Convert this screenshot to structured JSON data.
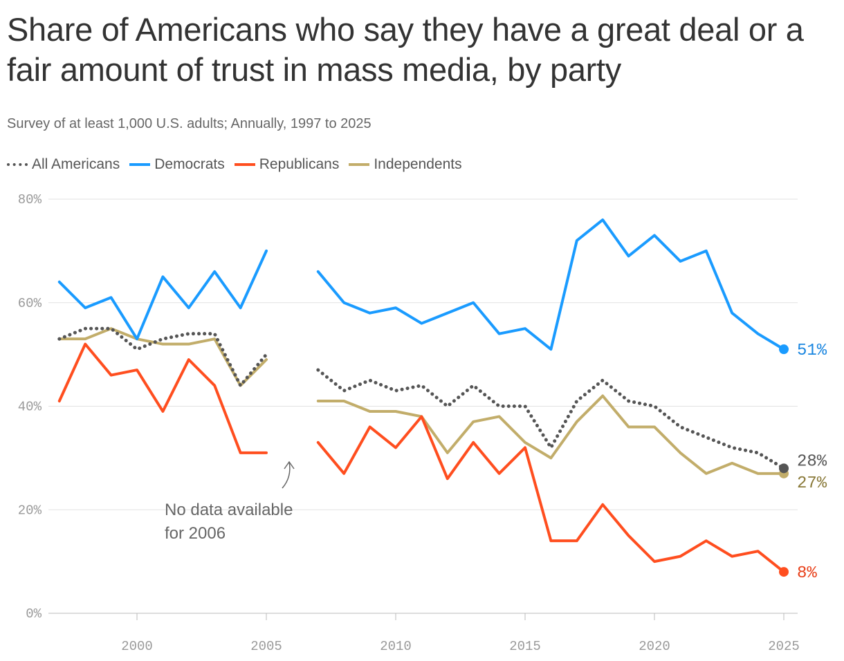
{
  "chart_data": {
    "type": "line",
    "title": "Share of Americans who say they have a great deal or a fair amount of trust in mass media, by party",
    "subtitle": "Survey of at least 1,000 U.S. adults; Annually, 1997 to 2025",
    "x": [
      1997,
      1998,
      1999,
      2000,
      2001,
      2002,
      2003,
      2004,
      2005,
      2006,
      2007,
      2008,
      2009,
      2010,
      2011,
      2012,
      2013,
      2014,
      2015,
      2016,
      2017,
      2018,
      2019,
      2020,
      2021,
      2022,
      2023,
      2024,
      2025
    ],
    "xlim": [
      1996,
      2025.5
    ],
    "xticks": [
      "2000",
      "2005",
      "2010",
      "2015",
      "2020",
      "2025"
    ],
    "ylim": [
      0,
      80
    ],
    "yticks": [
      "0%",
      "20%",
      "40%",
      "60%",
      "80%"
    ],
    "grid": true,
    "legend_position": "top-left",
    "series": [
      {
        "name": "All Americans",
        "color": "#555555",
        "style": "dotted",
        "values": [
          53,
          55,
          55,
          51,
          53,
          54,
          54,
          44,
          50,
          null,
          47,
          43,
          45,
          43,
          44,
          40,
          44,
          40,
          40,
          32,
          41,
          45,
          41,
          40,
          36,
          34,
          32,
          31,
          28
        ],
        "end_label": "28%",
        "label_color": "#555555"
      },
      {
        "name": "Democrats",
        "color": "#1a9bff",
        "style": "solid",
        "values": [
          64,
          59,
          61,
          53,
          65,
          59,
          66,
          59,
          70,
          null,
          66,
          60,
          58,
          59,
          56,
          58,
          60,
          54,
          55,
          51,
          72,
          76,
          69,
          73,
          68,
          70,
          58,
          54,
          51
        ],
        "end_label": "51%",
        "label_color": "#1a86e0"
      },
      {
        "name": "Republicans",
        "color": "#ff4e1f",
        "style": "solid",
        "values": [
          41,
          52,
          46,
          47,
          39,
          49,
          44,
          31,
          31,
          null,
          33,
          27,
          36,
          32,
          38,
          26,
          33,
          27,
          32,
          14,
          14,
          21,
          15,
          10,
          11,
          14,
          11,
          12,
          8
        ],
        "end_label": "8%",
        "label_color": "#e8401a"
      },
      {
        "name": "Independents",
        "color": "#c2ad6a",
        "style": "solid",
        "values": [
          53,
          53,
          55,
          53,
          52,
          52,
          53,
          44,
          49,
          null,
          41,
          41,
          39,
          39,
          38,
          31,
          37,
          38,
          33,
          30,
          37,
          42,
          36,
          36,
          31,
          27,
          29,
          27,
          27
        ],
        "end_label": "27%",
        "label_color": "#8a7a3a"
      }
    ],
    "annotation": [
      "No data available",
      "for 2006"
    ]
  }
}
